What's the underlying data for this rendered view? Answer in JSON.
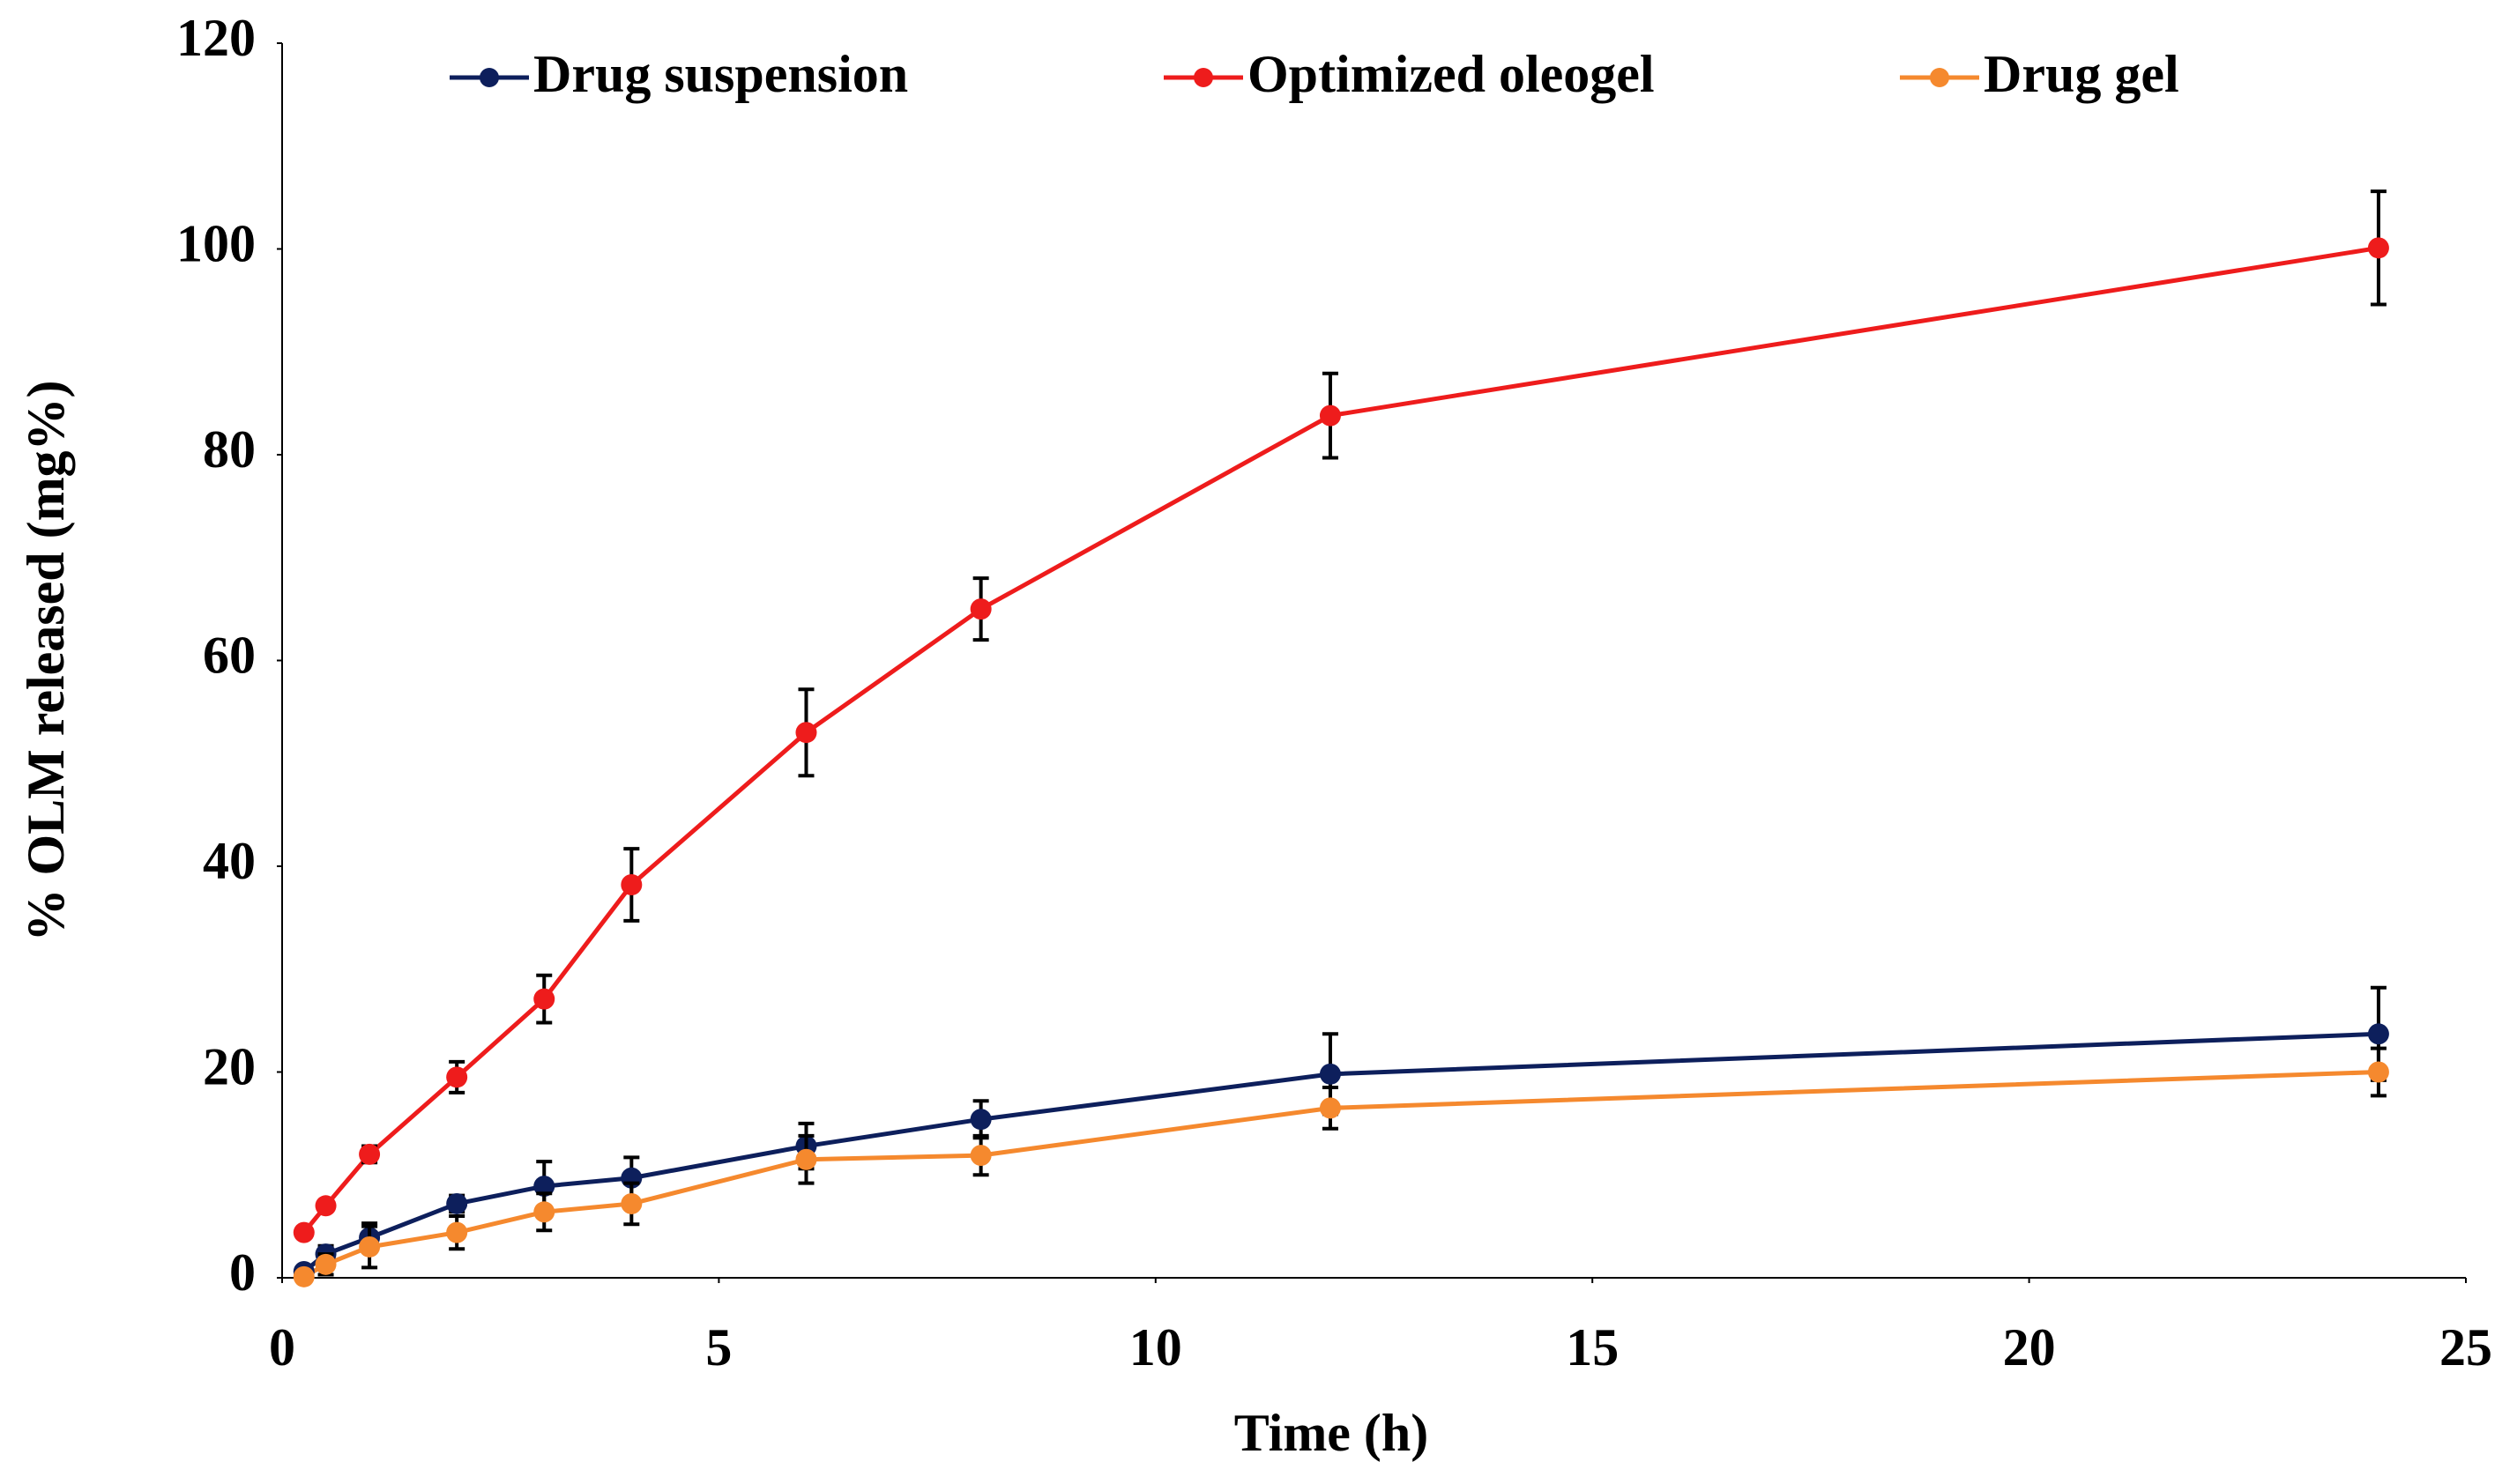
{
  "chart_data": {
    "type": "line",
    "x_label": "Time (h)",
    "y_label": "% OLM released (mg%)",
    "x": [
      0.25,
      0.5,
      1,
      2,
      3,
      4,
      6,
      8,
      12,
      24
    ],
    "series": [
      {
        "name": "Drug suspension",
        "color": "#0d1f5c",
        "values": [
          0.6,
          2.3,
          3.9,
          7.2,
          8.9,
          9.7,
          12.8,
          15.4,
          19.8,
          23.7
        ],
        "errors": [
          0.3,
          0.8,
          1.4,
          0.8,
          2.4,
          2.0,
          2.2,
          1.8,
          3.9,
          4.5
        ]
      },
      {
        "name": "Optimized oleogel",
        "color": "#ee1c1c",
        "values": [
          4.4,
          7.0,
          12.0,
          19.5,
          27.1,
          38.2,
          53.0,
          65.0,
          83.8,
          100.1
        ],
        "errors": [
          0.3,
          0.5,
          0.8,
          1.5,
          2.3,
          3.5,
          4.2,
          3.0,
          4.1,
          5.5
        ]
      },
      {
        "name": "Drug gel",
        "color": "#f5892e",
        "values": [
          0.1,
          1.3,
          3.0,
          4.4,
          6.4,
          7.2,
          11.5,
          11.9,
          16.5,
          20.0
        ],
        "errors": [
          0.3,
          1.0,
          2.0,
          1.6,
          1.8,
          2.0,
          2.3,
          1.9,
          2.0,
          2.3
        ]
      }
    ],
    "xlim": [
      0,
      25
    ],
    "xticks": [
      0,
      5,
      10,
      15,
      20,
      25
    ],
    "ylim": [
      0,
      120
    ],
    "yticks": [
      0,
      20,
      40,
      60,
      80,
      100,
      120
    ],
    "grid": false,
    "legend": "top"
  }
}
